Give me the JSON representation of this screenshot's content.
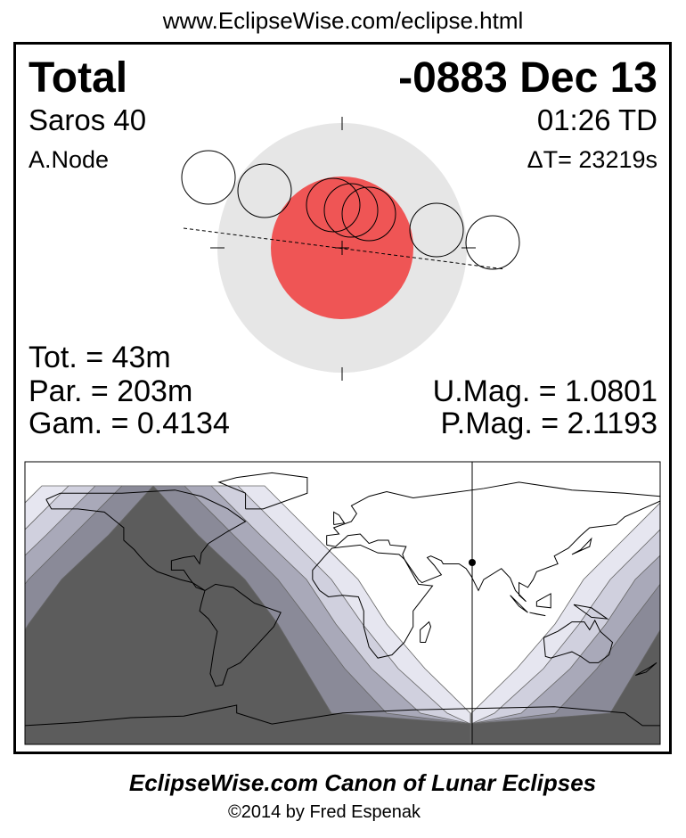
{
  "header": {
    "url": "www.EclipseWise.com/eclipse.html"
  },
  "eclipse": {
    "type": "Total",
    "date": "-0883 Dec 13",
    "saros": "Saros  40",
    "time": "01:26 TD",
    "node": "A.Node",
    "delta_t": "ΔT=  23219s",
    "totality": "Tot. =  43m",
    "partial": "Par. = 203m",
    "gamma": "Gam. = 0.4134",
    "umbral_mag": "U.Mag. = 1.0801",
    "penumbral_mag": "P.Mag. = 2.1193"
  },
  "colors": {
    "umbra": "#ef5555",
    "penumbra": "#e6e6e6",
    "map_shades": [
      "#e6e6f0",
      "#d0d0de",
      "#a9a9b9",
      "#8a8a98",
      "#5c5c5c"
    ]
  },
  "footer": {
    "title": "EclipseWise.com Canon of Lunar Eclipses",
    "copyright": "©2014 by Fred Espenak"
  }
}
